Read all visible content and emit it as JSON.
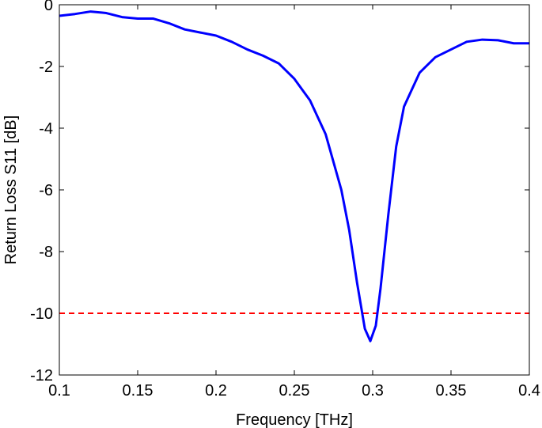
{
  "chart_data": {
    "type": "line",
    "xlabel": "Frequency [THz]",
    "ylabel": "Return Loss S11 [dB]",
    "xlim": [
      0.1,
      0.4
    ],
    "xticks": [
      0.1,
      0.15,
      0.2,
      0.25,
      0.3,
      0.35,
      0.4
    ],
    "ylim": [
      -12,
      0
    ],
    "yticks": [
      -12,
      -10,
      -8,
      -6,
      -4,
      -2,
      0
    ],
    "grid": false,
    "x": [
      0.1,
      0.11,
      0.12,
      0.13,
      0.14,
      0.15,
      0.16,
      0.17,
      0.18,
      0.19,
      0.2,
      0.21,
      0.22,
      0.23,
      0.24,
      0.25,
      0.26,
      0.27,
      0.28,
      0.285,
      0.29,
      0.295,
      0.2985,
      0.302,
      0.305,
      0.31,
      0.315,
      0.32,
      0.33,
      0.34,
      0.35,
      0.36,
      0.37,
      0.38,
      0.39,
      0.4
    ],
    "series": [
      {
        "color": "#0000ff",
        "values": [
          -0.36,
          -0.3,
          -0.22,
          -0.27,
          -0.4,
          -0.45,
          -0.45,
          -0.6,
          -0.8,
          -0.9,
          -1.0,
          -1.2,
          -1.45,
          -1.65,
          -1.9,
          -2.4,
          -3.1,
          -4.2,
          -6.0,
          -7.3,
          -9.0,
          -10.5,
          -10.9,
          -10.4,
          -9.2,
          -6.8,
          -4.6,
          -3.3,
          -2.2,
          -1.7,
          -1.45,
          -1.2,
          -1.13,
          -1.15,
          -1.25,
          -1.25
        ]
      }
    ],
    "reference_lines": [
      {
        "value": -10,
        "color": "#ff0000",
        "style": "dashed"
      }
    ]
  }
}
